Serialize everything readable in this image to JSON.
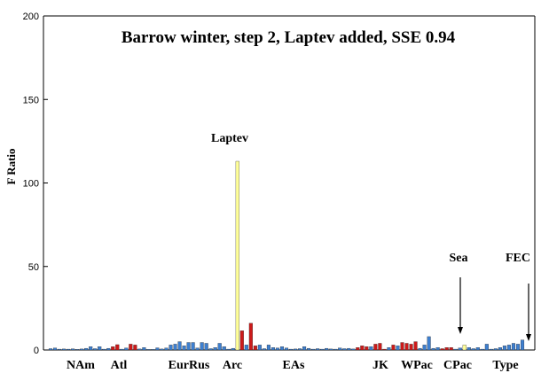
{
  "chart_data": {
    "type": "bar",
    "title": "Barrow winter, step 2, Laptev added, SSE 0.94",
    "ylabel": "F Ratio",
    "xlabel": "",
    "ylim": [
      0,
      200
    ],
    "yticks": [
      0,
      50,
      100,
      150,
      200
    ],
    "grid": false,
    "colors": {
      "blue": "#3d7fd0",
      "red": "#cc1a1a",
      "yellow": "#ffff99",
      "axis": "#000000"
    },
    "group_labels": [
      "NAm",
      "Atl",
      "EurRus",
      "Arc",
      "EAs",
      "JK",
      "WPac",
      "CPac",
      "Type"
    ],
    "annotations": [
      {
        "text": "Laptev",
        "arrow": false
      },
      {
        "text": "Sea",
        "arrow": true
      },
      {
        "text": "FEC",
        "arrow": true
      }
    ],
    "bars": [
      {
        "v": 0.8,
        "c": "blue"
      },
      {
        "v": 1.2,
        "c": "blue"
      },
      {
        "v": 0.5,
        "c": "blue"
      },
      {
        "v": 0.6,
        "c": "blue"
      },
      {
        "v": 0.5,
        "c": "blue"
      },
      {
        "v": 0.7,
        "c": "blue"
      },
      {
        "v": 0.4,
        "c": "blue"
      },
      {
        "v": 0.6,
        "c": "blue"
      },
      {
        "v": 1.0,
        "c": "blue"
      },
      {
        "v": 2.0,
        "c": "blue"
      },
      {
        "v": 0.8,
        "c": "blue"
      },
      {
        "v": 2.0,
        "c": "blue"
      },
      {
        "v": 0.5,
        "c": "blue"
      },
      {
        "v": 1.0,
        "c": "blue"
      },
      {
        "v": 2.0,
        "c": "red"
      },
      {
        "v": 3.2,
        "c": "red"
      },
      {
        "v": 0.5,
        "c": "blue"
      },
      {
        "v": 1.2,
        "c": "blue"
      },
      {
        "v": 3.5,
        "c": "red"
      },
      {
        "v": 3.0,
        "c": "red"
      },
      {
        "v": 0.6,
        "c": "blue"
      },
      {
        "v": 1.5,
        "c": "blue"
      },
      {
        "v": 0.4,
        "c": "blue"
      },
      {
        "v": 0.4,
        "c": "blue"
      },
      {
        "v": 1.3,
        "c": "blue"
      },
      {
        "v": 0.6,
        "c": "blue"
      },
      {
        "v": 1.2,
        "c": "blue"
      },
      {
        "v": 3.0,
        "c": "blue"
      },
      {
        "v": 3.5,
        "c": "blue"
      },
      {
        "v": 5.0,
        "c": "blue"
      },
      {
        "v": 2.5,
        "c": "blue"
      },
      {
        "v": 4.5,
        "c": "blue"
      },
      {
        "v": 4.5,
        "c": "blue"
      },
      {
        "v": 1.2,
        "c": "blue"
      },
      {
        "v": 4.5,
        "c": "blue"
      },
      {
        "v": 4.0,
        "c": "blue"
      },
      {
        "v": 0.8,
        "c": "blue"
      },
      {
        "v": 1.5,
        "c": "blue"
      },
      {
        "v": 4.0,
        "c": "blue"
      },
      {
        "v": 2.0,
        "c": "blue"
      },
      {
        "v": 0.5,
        "c": "blue"
      },
      {
        "v": 1.0,
        "c": "blue"
      },
      {
        "v": 113,
        "c": "yellow"
      },
      {
        "v": 11.5,
        "c": "red"
      },
      {
        "v": 3.0,
        "c": "blue"
      },
      {
        "v": 16,
        "c": "red"
      },
      {
        "v": 2.5,
        "c": "red"
      },
      {
        "v": 3.0,
        "c": "blue"
      },
      {
        "v": 0.8,
        "c": "blue"
      },
      {
        "v": 3.0,
        "c": "blue"
      },
      {
        "v": 1.5,
        "c": "blue"
      },
      {
        "v": 1.2,
        "c": "blue"
      },
      {
        "v": 2.0,
        "c": "blue"
      },
      {
        "v": 1.2,
        "c": "blue"
      },
      {
        "v": 0.5,
        "c": "blue"
      },
      {
        "v": 0.6,
        "c": "blue"
      },
      {
        "v": 0.8,
        "c": "blue"
      },
      {
        "v": 2.0,
        "c": "blue"
      },
      {
        "v": 1.0,
        "c": "blue"
      },
      {
        "v": 0.5,
        "c": "blue"
      },
      {
        "v": 0.8,
        "c": "blue"
      },
      {
        "v": 0.5,
        "c": "blue"
      },
      {
        "v": 1.0,
        "c": "blue"
      },
      {
        "v": 0.6,
        "c": "blue"
      },
      {
        "v": 0.5,
        "c": "blue"
      },
      {
        "v": 1.2,
        "c": "blue"
      },
      {
        "v": 0.8,
        "c": "blue"
      },
      {
        "v": 1.0,
        "c": "blue"
      },
      {
        "v": 0.6,
        "c": "blue"
      },
      {
        "v": 1.5,
        "c": "red"
      },
      {
        "v": 2.5,
        "c": "red"
      },
      {
        "v": 2.0,
        "c": "red"
      },
      {
        "v": 2.0,
        "c": "blue"
      },
      {
        "v": 3.5,
        "c": "red"
      },
      {
        "v": 4.0,
        "c": "red"
      },
      {
        "v": 0.5,
        "c": "red"
      },
      {
        "v": 1.5,
        "c": "blue"
      },
      {
        "v": 3.0,
        "c": "red"
      },
      {
        "v": 2.5,
        "c": "blue"
      },
      {
        "v": 4.5,
        "c": "red"
      },
      {
        "v": 4.0,
        "c": "red"
      },
      {
        "v": 3.5,
        "c": "red"
      },
      {
        "v": 5.0,
        "c": "red"
      },
      {
        "v": 1.0,
        "c": "blue"
      },
      {
        "v": 3.0,
        "c": "blue"
      },
      {
        "v": 8.0,
        "c": "blue"
      },
      {
        "v": 1.0,
        "c": "blue"
      },
      {
        "v": 1.5,
        "c": "blue"
      },
      {
        "v": 0.8,
        "c": "red"
      },
      {
        "v": 1.5,
        "c": "red"
      },
      {
        "v": 1.5,
        "c": "red"
      },
      {
        "v": 0.5,
        "c": "blue"
      },
      {
        "v": 1.2,
        "c": "blue"
      },
      {
        "v": 3.0,
        "c": "yellow"
      },
      {
        "v": 1.5,
        "c": "blue"
      },
      {
        "v": 0.8,
        "c": "blue"
      },
      {
        "v": 1.5,
        "c": "blue"
      },
      {
        "v": 0.5,
        "c": "blue"
      },
      {
        "v": 3.5,
        "c": "blue"
      },
      {
        "v": 0.5,
        "c": "blue"
      },
      {
        "v": 0.8,
        "c": "blue"
      },
      {
        "v": 1.5,
        "c": "blue"
      },
      {
        "v": 2.5,
        "c": "blue"
      },
      {
        "v": 3.0,
        "c": "blue"
      },
      {
        "v": 4.0,
        "c": "blue"
      },
      {
        "v": 3.5,
        "c": "blue"
      },
      {
        "v": 6.0,
        "c": "blue"
      }
    ]
  }
}
